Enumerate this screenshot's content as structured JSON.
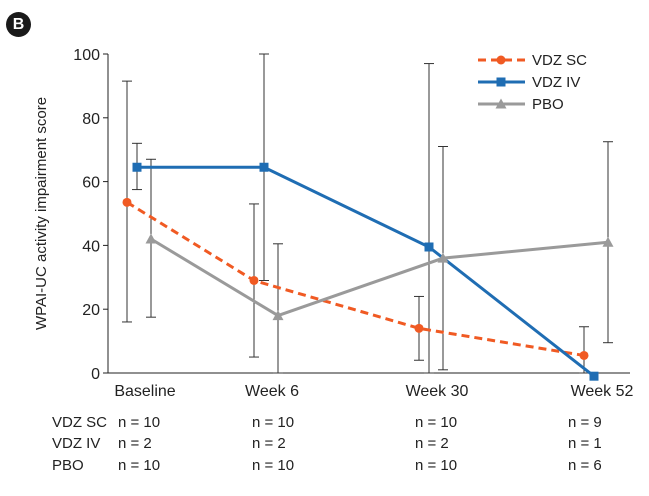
{
  "panel_label": "B",
  "chart_data": {
    "type": "line",
    "ylabel": "WPAI-UC activity impairment score",
    "ylim": [
      0,
      100
    ],
    "yticks": [
      0,
      20,
      40,
      60,
      80,
      100
    ],
    "categories": [
      "Baseline",
      "Week 6",
      "Week 30",
      "Week 52"
    ],
    "grid": false,
    "legend": "top-right",
    "series": [
      {
        "name": "VDZ SC",
        "color": "#f05a23",
        "style": "dashed",
        "marker": "circle",
        "values": [
          53.5,
          29,
          14,
          5.5
        ],
        "error_low": [
          16,
          5,
          4,
          0
        ],
        "error_high": [
          91.5,
          53,
          24,
          14.5
        ]
      },
      {
        "name": "VDZ IV",
        "color": "#1f6db3",
        "style": "solid",
        "marker": "square",
        "values": [
          64.5,
          64.5,
          39.5,
          -1
        ],
        "error_low": [
          57.5,
          29,
          0,
          0
        ],
        "error_high": [
          72,
          100,
          97,
          0
        ]
      },
      {
        "name": "PBO",
        "color": "#9a9a9a",
        "style": "solid",
        "marker": "triangle",
        "values": [
          42,
          18,
          36,
          41
        ],
        "error_low": [
          17.5,
          0,
          1,
          9.5
        ],
        "error_high": [
          67,
          40.5,
          71,
          72.5
        ]
      }
    ]
  },
  "n_table": {
    "rows": [
      {
        "label": "VDZ SC",
        "values": [
          "n = 10",
          "n = 10",
          "n = 10",
          "n = 9"
        ]
      },
      {
        "label": "VDZ IV",
        "values": [
          "n = 2",
          "n = 2",
          "n = 2",
          "n = 1"
        ]
      },
      {
        "label": "PBO",
        "values": [
          "n = 10",
          "n = 10",
          "n = 10",
          "n = 6"
        ]
      }
    ]
  }
}
